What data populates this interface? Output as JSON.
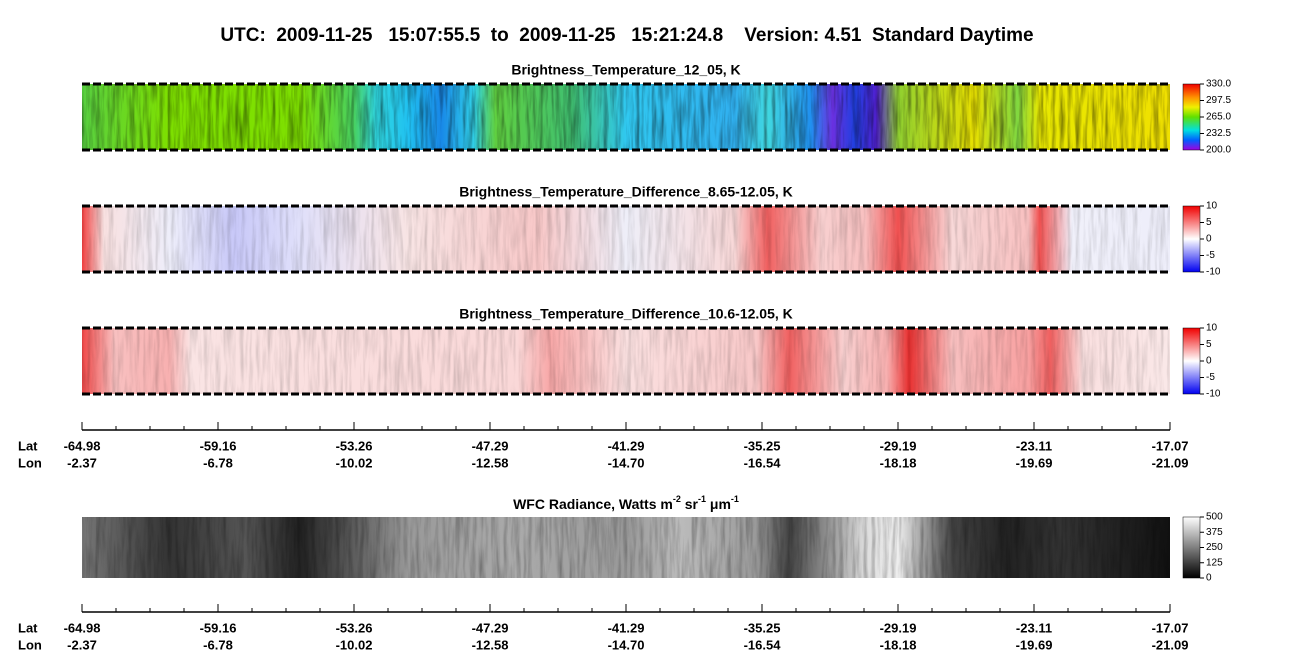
{
  "title": "UTC:  2009-11-25   15:07:55.5  to  2009-11-25   15:21:24.8    Version: 4.51  Standard Daytime",
  "panels": [
    {
      "title": "Brightness_Temperature_12_05, K",
      "colorbar": [
        "330.0",
        "297.5",
        "265.0",
        "232.5",
        "200.0"
      ]
    },
    {
      "title": "Brightness_Temperature_Difference_8.65-12.05, K",
      "colorbar": [
        "10",
        "5",
        "0",
        "-5",
        "-10"
      ]
    },
    {
      "title": "Brightness_Temperature_Difference_10.6-12.05, K",
      "colorbar": [
        "10",
        "5",
        "0",
        "-5",
        "-10"
      ]
    },
    {
      "title_parts": [
        "WFC Radiance, Watts m",
        "-2",
        " sr",
        "-1",
        " μm",
        "-1"
      ],
      "colorbar": [
        "500",
        "375",
        "250",
        "125",
        "0"
      ]
    }
  ],
  "axes": [
    {
      "row_labels": [
        "Lat",
        "Lon"
      ],
      "lat": [
        "-64.98",
        "-59.16",
        "-53.26",
        "-47.29",
        "-41.29",
        "-35.25",
        "-29.19",
        "-23.11",
        "-17.07"
      ],
      "lon": [
        "-2.37",
        "-6.78",
        "-10.02",
        "-12.58",
        "-14.70",
        "-16.54",
        "-18.18",
        "-19.69",
        "-21.09"
      ]
    },
    {
      "row_labels": [
        "Lat",
        "Lon"
      ],
      "lat": [
        "-64.98",
        "-59.16",
        "-53.26",
        "-47.29",
        "-41.29",
        "-35.25",
        "-29.19",
        "-23.11",
        "-17.07"
      ],
      "lon": [
        "-2.37",
        "-6.78",
        "-10.02",
        "-12.58",
        "-14.70",
        "-16.54",
        "-18.18",
        "-19.69",
        "-21.09"
      ]
    }
  ]
}
